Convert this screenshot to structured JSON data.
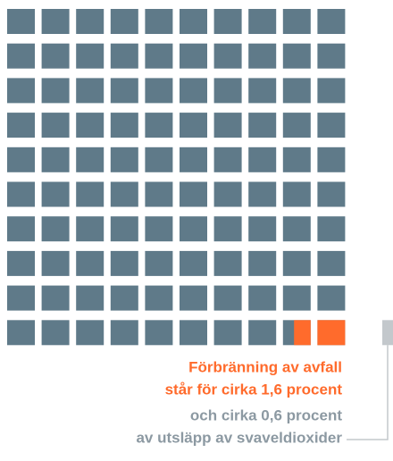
{
  "chart_data": {
    "type": "waffle",
    "rows": 10,
    "columns": 10,
    "total": 100,
    "cell_color": "#5f7a89",
    "series": [
      {
        "name": [
          "Förbränning av avfall",
          "står för cirka 1,6 procent"
        ],
        "value": 1.6,
        "color": "#ff6b2c"
      },
      {
        "name": [
          "och cirka 0,6 procent",
          "av utsläpp av svaveldioxider"
        ],
        "value": 0.6,
        "color": "#c3c8cc"
      }
    ]
  }
}
